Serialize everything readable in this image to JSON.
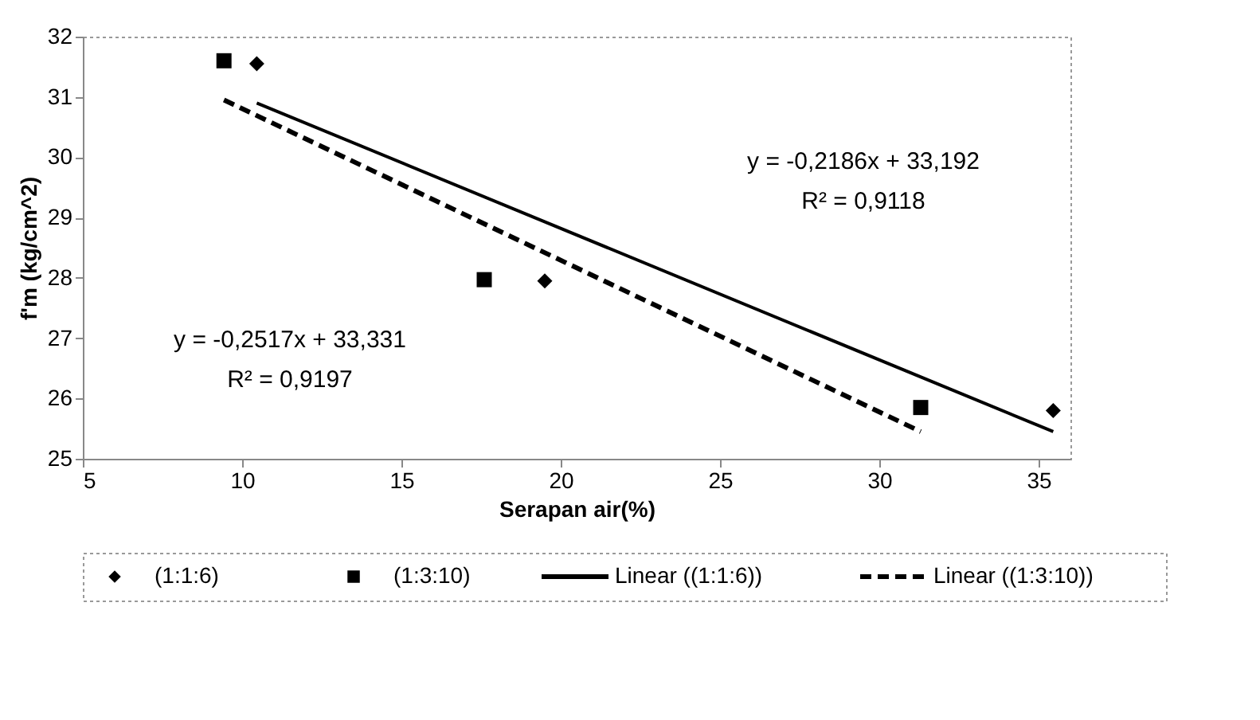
{
  "chart_data": {
    "type": "scatter",
    "xlabel": "Serapan air(%)",
    "ylabel": "f'm (kg/cm^2)",
    "xlim": [
      5,
      36
    ],
    "xticks": [
      5,
      10,
      15,
      20,
      25,
      30,
      35
    ],
    "ylim": [
      25,
      32
    ],
    "yticks": [
      25,
      26,
      27,
      28,
      29,
      30,
      31,
      32
    ],
    "grid": false,
    "legend": "bottom",
    "series": [
      {
        "name": "(1:1:6)",
        "marker": "diamond",
        "color": "#000000",
        "x": [
          10.46,
          19.5,
          35.46
        ],
        "values": [
          31.55,
          27.95,
          25.8
        ]
      },
      {
        "name": "(1:3:10)",
        "marker": "square",
        "color": "#000000",
        "x": [
          9.43,
          17.6,
          31.3
        ],
        "values": [
          31.6,
          27.97,
          25.85
        ]
      },
      {
        "name": "Linear ((1:1:6))",
        "type": "line",
        "line_style": "solid",
        "color": "#000000",
        "x": [
          10.46,
          35.46
        ],
        "values": [
          30.9,
          25.45
        ]
      },
      {
        "name": "Linear ((1:3:10))",
        "type": "line",
        "line_style": "dashed",
        "color": "#000000",
        "x": [
          9.43,
          31.3
        ],
        "values": [
          30.95,
          25.45
        ]
      }
    ],
    "annotations": [
      "y = -0,2186x + 33,192",
      "R² = 0,9118",
      "y = -0,2517x + 33,331",
      "R² = 0,9197"
    ]
  }
}
